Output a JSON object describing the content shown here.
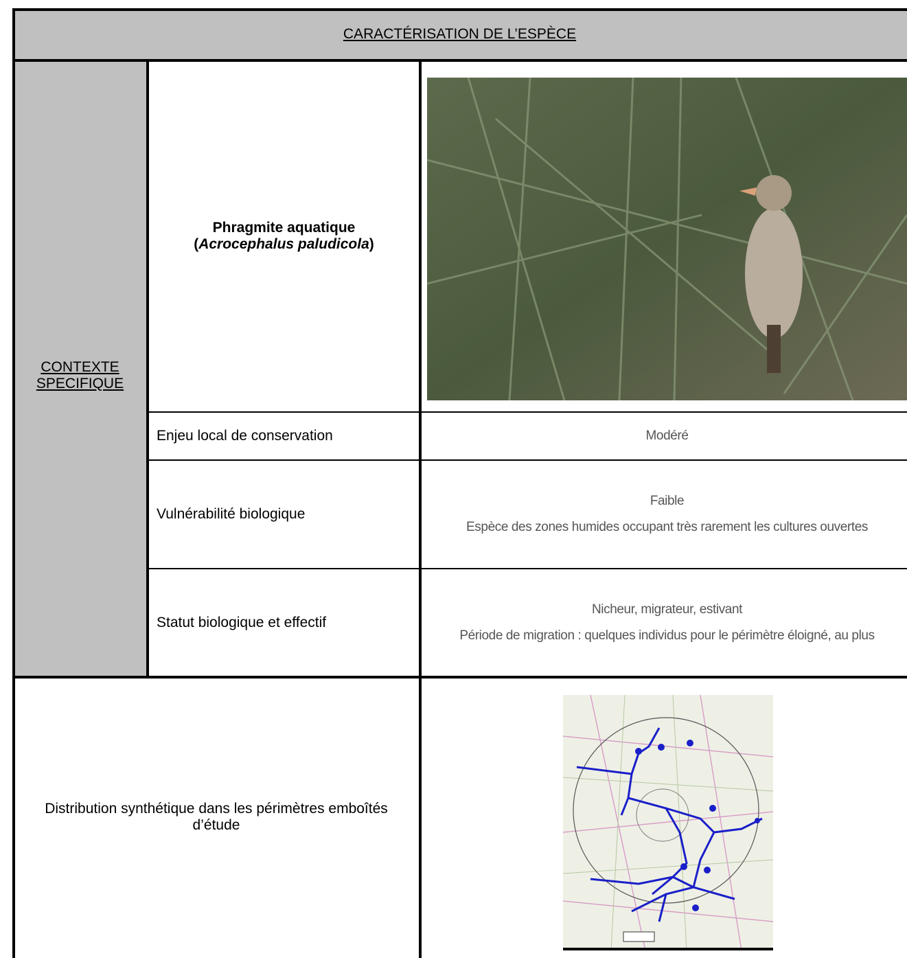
{
  "header": {
    "title": "CARACTÉRISATION DE L’ESPÈCE"
  },
  "section": {
    "label_lines": [
      "CONTEXTE",
      "SPECIFIQUE"
    ]
  },
  "species": {
    "common_name": "Phragmite aquatique",
    "latin_line": [
      {
        "text": "(",
        "italic": false
      },
      {
        "text": "Acrocephalus paludicola",
        "italic": true
      },
      {
        "text": ")",
        "italic": false
      }
    ]
  },
  "rows": [
    {
      "label": "Enjeu local de conservation",
      "values": [
        "Modéré"
      ]
    },
    {
      "label": "Vulnérabilité biologique",
      "values": [
        "Faible",
        "Espèce des zones humides occupant très rarement les cultures ouvertes"
      ]
    },
    {
      "label": "Statut biologique et effectif",
      "values": [
        "Nicheur, migrateur, estivant",
        "Période de migration : quelques individus pour le périmètre éloigné, au plus"
      ]
    }
  ],
  "distribution": {
    "label": "Distribution synthétique dans les périmètres emboîtés d’étude"
  }
}
